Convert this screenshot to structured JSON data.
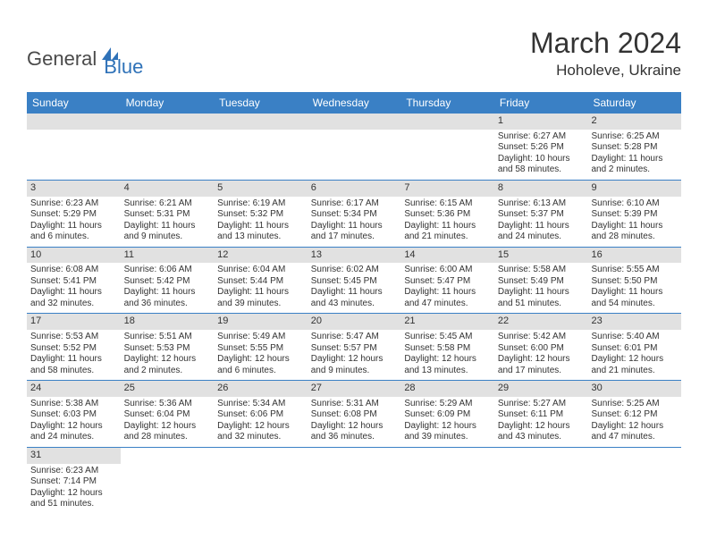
{
  "header": {
    "logo_general": "General",
    "logo_blue": "Blue",
    "month_title": "March 2024",
    "location": "Hoholeve, Ukraine"
  },
  "colors": {
    "header_bg": "#3a80c5",
    "header_text": "#ffffff",
    "daynum_bg": "#e1e1e1",
    "row_border": "#3a80c5",
    "text": "#333333",
    "logo_blue": "#2f72b8",
    "logo_gray": "#4a4a4a"
  },
  "day_names": [
    "Sunday",
    "Monday",
    "Tuesday",
    "Wednesday",
    "Thursday",
    "Friday",
    "Saturday"
  ],
  "weeks": [
    [
      {
        "empty": true
      },
      {
        "empty": true
      },
      {
        "empty": true
      },
      {
        "empty": true
      },
      {
        "empty": true
      },
      {
        "num": "1",
        "sunrise": "Sunrise: 6:27 AM",
        "sunset": "Sunset: 5:26 PM",
        "day1": "Daylight: 10 hours",
        "day2": "and 58 minutes."
      },
      {
        "num": "2",
        "sunrise": "Sunrise: 6:25 AM",
        "sunset": "Sunset: 5:28 PM",
        "day1": "Daylight: 11 hours",
        "day2": "and 2 minutes."
      }
    ],
    [
      {
        "num": "3",
        "sunrise": "Sunrise: 6:23 AM",
        "sunset": "Sunset: 5:29 PM",
        "day1": "Daylight: 11 hours",
        "day2": "and 6 minutes."
      },
      {
        "num": "4",
        "sunrise": "Sunrise: 6:21 AM",
        "sunset": "Sunset: 5:31 PM",
        "day1": "Daylight: 11 hours",
        "day2": "and 9 minutes."
      },
      {
        "num": "5",
        "sunrise": "Sunrise: 6:19 AM",
        "sunset": "Sunset: 5:32 PM",
        "day1": "Daylight: 11 hours",
        "day2": "and 13 minutes."
      },
      {
        "num": "6",
        "sunrise": "Sunrise: 6:17 AM",
        "sunset": "Sunset: 5:34 PM",
        "day1": "Daylight: 11 hours",
        "day2": "and 17 minutes."
      },
      {
        "num": "7",
        "sunrise": "Sunrise: 6:15 AM",
        "sunset": "Sunset: 5:36 PM",
        "day1": "Daylight: 11 hours",
        "day2": "and 21 minutes."
      },
      {
        "num": "8",
        "sunrise": "Sunrise: 6:13 AM",
        "sunset": "Sunset: 5:37 PM",
        "day1": "Daylight: 11 hours",
        "day2": "and 24 minutes."
      },
      {
        "num": "9",
        "sunrise": "Sunrise: 6:10 AM",
        "sunset": "Sunset: 5:39 PM",
        "day1": "Daylight: 11 hours",
        "day2": "and 28 minutes."
      }
    ],
    [
      {
        "num": "10",
        "sunrise": "Sunrise: 6:08 AM",
        "sunset": "Sunset: 5:41 PM",
        "day1": "Daylight: 11 hours",
        "day2": "and 32 minutes."
      },
      {
        "num": "11",
        "sunrise": "Sunrise: 6:06 AM",
        "sunset": "Sunset: 5:42 PM",
        "day1": "Daylight: 11 hours",
        "day2": "and 36 minutes."
      },
      {
        "num": "12",
        "sunrise": "Sunrise: 6:04 AM",
        "sunset": "Sunset: 5:44 PM",
        "day1": "Daylight: 11 hours",
        "day2": "and 39 minutes."
      },
      {
        "num": "13",
        "sunrise": "Sunrise: 6:02 AM",
        "sunset": "Sunset: 5:45 PM",
        "day1": "Daylight: 11 hours",
        "day2": "and 43 minutes."
      },
      {
        "num": "14",
        "sunrise": "Sunrise: 6:00 AM",
        "sunset": "Sunset: 5:47 PM",
        "day1": "Daylight: 11 hours",
        "day2": "and 47 minutes."
      },
      {
        "num": "15",
        "sunrise": "Sunrise: 5:58 AM",
        "sunset": "Sunset: 5:49 PM",
        "day1": "Daylight: 11 hours",
        "day2": "and 51 minutes."
      },
      {
        "num": "16",
        "sunrise": "Sunrise: 5:55 AM",
        "sunset": "Sunset: 5:50 PM",
        "day1": "Daylight: 11 hours",
        "day2": "and 54 minutes."
      }
    ],
    [
      {
        "num": "17",
        "sunrise": "Sunrise: 5:53 AM",
        "sunset": "Sunset: 5:52 PM",
        "day1": "Daylight: 11 hours",
        "day2": "and 58 minutes."
      },
      {
        "num": "18",
        "sunrise": "Sunrise: 5:51 AM",
        "sunset": "Sunset: 5:53 PM",
        "day1": "Daylight: 12 hours",
        "day2": "and 2 minutes."
      },
      {
        "num": "19",
        "sunrise": "Sunrise: 5:49 AM",
        "sunset": "Sunset: 5:55 PM",
        "day1": "Daylight: 12 hours",
        "day2": "and 6 minutes."
      },
      {
        "num": "20",
        "sunrise": "Sunrise: 5:47 AM",
        "sunset": "Sunset: 5:57 PM",
        "day1": "Daylight: 12 hours",
        "day2": "and 9 minutes."
      },
      {
        "num": "21",
        "sunrise": "Sunrise: 5:45 AM",
        "sunset": "Sunset: 5:58 PM",
        "day1": "Daylight: 12 hours",
        "day2": "and 13 minutes."
      },
      {
        "num": "22",
        "sunrise": "Sunrise: 5:42 AM",
        "sunset": "Sunset: 6:00 PM",
        "day1": "Daylight: 12 hours",
        "day2": "and 17 minutes."
      },
      {
        "num": "23",
        "sunrise": "Sunrise: 5:40 AM",
        "sunset": "Sunset: 6:01 PM",
        "day1": "Daylight: 12 hours",
        "day2": "and 21 minutes."
      }
    ],
    [
      {
        "num": "24",
        "sunrise": "Sunrise: 5:38 AM",
        "sunset": "Sunset: 6:03 PM",
        "day1": "Daylight: 12 hours",
        "day2": "and 24 minutes."
      },
      {
        "num": "25",
        "sunrise": "Sunrise: 5:36 AM",
        "sunset": "Sunset: 6:04 PM",
        "day1": "Daylight: 12 hours",
        "day2": "and 28 minutes."
      },
      {
        "num": "26",
        "sunrise": "Sunrise: 5:34 AM",
        "sunset": "Sunset: 6:06 PM",
        "day1": "Daylight: 12 hours",
        "day2": "and 32 minutes."
      },
      {
        "num": "27",
        "sunrise": "Sunrise: 5:31 AM",
        "sunset": "Sunset: 6:08 PM",
        "day1": "Daylight: 12 hours",
        "day2": "and 36 minutes."
      },
      {
        "num": "28",
        "sunrise": "Sunrise: 5:29 AM",
        "sunset": "Sunset: 6:09 PM",
        "day1": "Daylight: 12 hours",
        "day2": "and 39 minutes."
      },
      {
        "num": "29",
        "sunrise": "Sunrise: 5:27 AM",
        "sunset": "Sunset: 6:11 PM",
        "day1": "Daylight: 12 hours",
        "day2": "and 43 minutes."
      },
      {
        "num": "30",
        "sunrise": "Sunrise: 5:25 AM",
        "sunset": "Sunset: 6:12 PM",
        "day1": "Daylight: 12 hours",
        "day2": "and 47 minutes."
      }
    ],
    [
      {
        "num": "31",
        "sunrise": "Sunrise: 6:23 AM",
        "sunset": "Sunset: 7:14 PM",
        "day1": "Daylight: 12 hours",
        "day2": "and 51 minutes."
      },
      {
        "empty": true
      },
      {
        "empty": true
      },
      {
        "empty": true
      },
      {
        "empty": true
      },
      {
        "empty": true
      },
      {
        "empty": true
      }
    ]
  ]
}
